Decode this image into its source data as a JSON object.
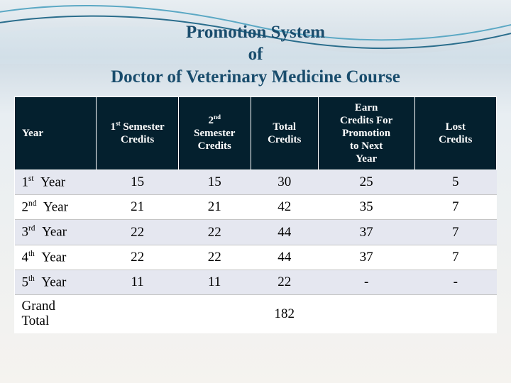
{
  "title": {
    "line1": "Promotion System",
    "line2": "of",
    "line3": "Doctor of Veterinary Medicine Course",
    "color": "#1a4d6d",
    "fontsize": 25
  },
  "wave": {
    "stroke1": "#5ba8c4",
    "stroke2": "#2a6d8c",
    "fill": "#d8e6ee"
  },
  "table": {
    "header_bg": "#04202e",
    "header_fg": "#ffffff",
    "row_alt_bg": "#e5e7f0",
    "row_bg": "#ffffff",
    "columns": [
      "Year",
      "1st Semester Credits",
      "2nd Semester Credits",
      "Total Credits",
      "Earn Credits For Promotion to Next Year",
      "Lost Credits"
    ],
    "rows": [
      {
        "year_ord": "1",
        "year_suf": "st",
        "year_lbl": "Year",
        "sem1": "15",
        "sem2": "15",
        "total": "30",
        "earn": "25",
        "lost": "5"
      },
      {
        "year_ord": "2",
        "year_suf": "nd",
        "year_lbl": "Year",
        "sem1": "21",
        "sem2": "21",
        "total": "42",
        "earn": "35",
        "lost": "7"
      },
      {
        "year_ord": "3",
        "year_suf": "rd",
        "year_lbl": "Year",
        "sem1": "22",
        "sem2": "22",
        "total": "44",
        "earn": "37",
        "lost": "7"
      },
      {
        "year_ord": "4",
        "year_suf": "th",
        "year_lbl": "Year",
        "sem1": "22",
        "sem2": "22",
        "total": "44",
        "earn": "37",
        "lost": "7"
      },
      {
        "year_ord": "5",
        "year_suf": "th",
        "year_lbl": "Year",
        "sem1": "11",
        "sem2": "11",
        "total": "22",
        "earn": "-",
        "lost": "-"
      }
    ],
    "grand_total": {
      "label": "Grand Total",
      "total": "182"
    }
  }
}
